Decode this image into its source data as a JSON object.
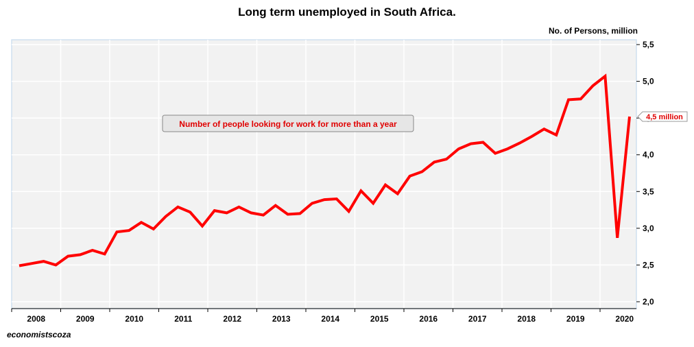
{
  "chart_data": {
    "type": "line",
    "title": "Long term unemployed in South Africa.",
    "ylabel": "No. of Persons, million",
    "source": "economistscoza",
    "ylim": [
      2.0,
      5.5
    ],
    "yticks": [
      "2,0",
      "2,5",
      "3,0",
      "3,5",
      "4,0",
      "4,5",
      "5,0",
      "5,5"
    ],
    "ytick_values": [
      2.0,
      2.5,
      3.0,
      3.5,
      4.0,
      4.5,
      5.0,
      5.5
    ],
    "years": [
      "2008",
      "2009",
      "2010",
      "2011",
      "2012",
      "2013",
      "2014",
      "2015",
      "2016",
      "2017",
      "2018",
      "2019",
      "2020"
    ],
    "grid": true,
    "series": [
      {
        "color": "#ff0000",
        "values": [
          2.49,
          2.52,
          2.55,
          2.5,
          2.62,
          2.64,
          2.7,
          2.65,
          2.95,
          2.97,
          3.08,
          2.99,
          3.16,
          3.29,
          3.22,
          3.03,
          3.24,
          3.21,
          3.29,
          3.21,
          3.18,
          3.31,
          3.19,
          3.2,
          3.34,
          3.39,
          3.4,
          3.23,
          3.51,
          3.34,
          3.59,
          3.47,
          3.71,
          3.77,
          3.9,
          3.94,
          4.08,
          4.15,
          4.17,
          4.02,
          4.08,
          4.16,
          4.25,
          4.35,
          4.27,
          4.75,
          4.76,
          4.94,
          5.07,
          2.87,
          4.52
        ]
      }
    ],
    "annotations": {
      "box_text": "Number of people looking for work for more than a year",
      "last_value_label": "4,5 million"
    }
  }
}
